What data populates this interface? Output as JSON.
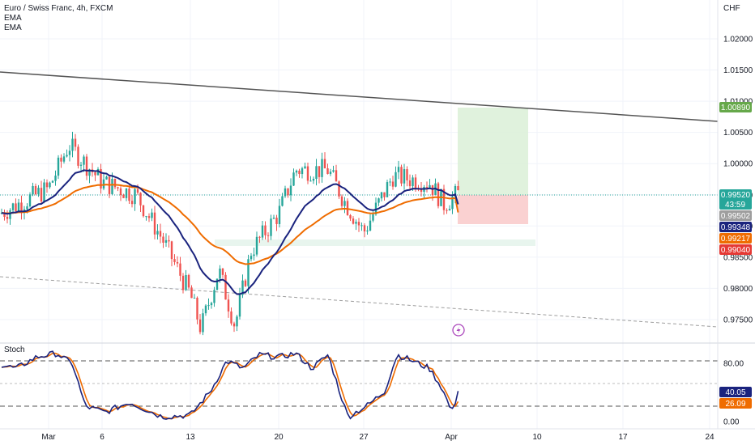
{
  "legend": {
    "symbol": "Euro / Swiss Franc, 4h, FXCM",
    "ema1": "EMA",
    "ema2": "EMA"
  },
  "price_scale": {
    "currency": "CHF",
    "ticks": [
      "1.02000",
      "1.01500",
      "1.01000",
      "1.00500",
      "1.00000",
      "0.99500",
      "0.99000",
      "0.98500",
      "0.98000",
      "0.97500"
    ]
  },
  "stoch_scale": {
    "ticks": [
      "80.00",
      "0.00"
    ]
  },
  "time_axis": {
    "labels": [
      "Mar",
      "6",
      "13",
      "20",
      "27",
      "Apr",
      "10",
      "17",
      "24"
    ]
  },
  "badges": {
    "target": "1.00890",
    "last": "0.99520",
    "countdown": "43:59",
    "entry": "0.99502",
    "ema_fast": "0.99348",
    "ema_slow": "0.99217",
    "stop": "0.99040",
    "stoch_k": "40.05",
    "stoch_d": "26.09"
  },
  "indicator_label": "Stoch",
  "colors": {
    "bull": "#26a69a",
    "bear": "#ef5350",
    "ema_fast": "#1a237e",
    "ema_slow": "#ef6c00",
    "trendline": "#555555",
    "target_badge": "#66a84a",
    "stop_badge": "#e53935",
    "stoch_k": "#1a237e",
    "stoch_d": "#ef6c00"
  },
  "chart_data": {
    "type": "candlestick",
    "instrument": "Euro / Swiss Franc",
    "timeframe": "4h",
    "y_range": [
      0.9725,
      1.0235
    ],
    "approx_close_path": [
      {
        "date": "Feb 26",
        "value": 0.992
      },
      {
        "date": "Mar 1",
        "value": 0.996
      },
      {
        "date": "Mar 3",
        "value": 1.003
      },
      {
        "date": "Mar 6",
        "value": 0.997
      },
      {
        "date": "Mar 9",
        "value": 0.995
      },
      {
        "date": "Mar 10",
        "value": 0.988
      },
      {
        "date": "Mar 13",
        "value": 0.979
      },
      {
        "date": "Mar 14",
        "value": 0.9735
      },
      {
        "date": "Mar 15",
        "value": 0.983
      },
      {
        "date": "Mar 16",
        "value": 0.974
      },
      {
        "date": "Mar 17",
        "value": 0.986
      },
      {
        "date": "Mar 20",
        "value": 0.992
      },
      {
        "date": "Mar 21",
        "value": 0.999
      },
      {
        "date": "Mar 23",
        "value": 0.999
      },
      {
        "date": "Mar 24",
        "value": 0.994
      },
      {
        "date": "Mar 27",
        "value": 0.989
      },
      {
        "date": "Mar 29",
        "value": 0.998
      },
      {
        "date": "Mar 30",
        "value": 0.997
      },
      {
        "date": "Mar 31",
        "value": 0.9935
      },
      {
        "date": "Apr 3",
        "value": 0.9952
      }
    ],
    "ema_fast_end": 0.99348,
    "ema_slow_end": 0.99217,
    "trade": {
      "entry": 0.99502,
      "target": 1.0089,
      "stop": 0.9904
    },
    "support_zone": [
      0.9875,
      0.9885
    ],
    "stoch": {
      "k_last": 40.05,
      "d_last": 26.09,
      "levels": [
        80,
        20
      ],
      "range": [
        0,
        100
      ]
    }
  }
}
